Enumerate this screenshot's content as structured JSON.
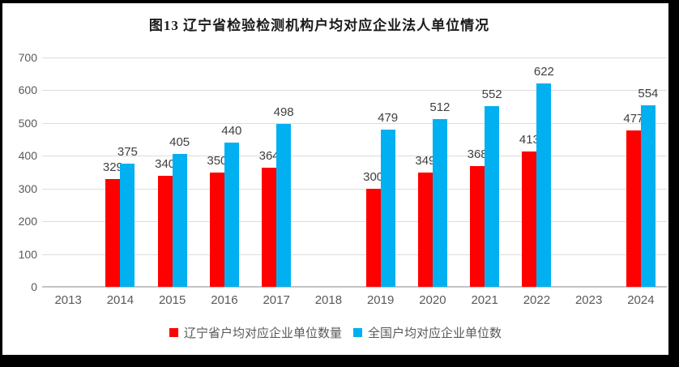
{
  "title": "图13 辽宁省检验检测机构户均对应企业法人单位情况",
  "chart_data": {
    "type": "bar",
    "categories": [
      "2013",
      "2014",
      "2015",
      "2016",
      "2017",
      "2018",
      "2019",
      "2020",
      "2021",
      "2022",
      "2023",
      "2024"
    ],
    "series": [
      {
        "name": "辽宁省户均对应企业单位数量",
        "color": "#FF0000",
        "values": [
          null,
          329,
          340,
          350,
          364,
          null,
          300,
          349,
          368,
          413,
          null,
          477
        ]
      },
      {
        "name": "全国户均对应企业单位数",
        "color": "#00B0F0",
        "values": [
          null,
          375,
          405,
          440,
          498,
          null,
          479,
          512,
          552,
          622,
          null,
          554
        ]
      }
    ],
    "ylim": [
      0,
      700
    ],
    "yticks": [
      0,
      100,
      200,
      300,
      400,
      500,
      600,
      700
    ],
    "grid": true,
    "data_labels": true,
    "legend_position": "bottom"
  },
  "style": {
    "frame_background": "#000000",
    "chart_background": "#FFFFFF",
    "gridline_color": "#DCDCDC",
    "axis_label_color": "#595959",
    "value_label_color": "#404040"
  }
}
